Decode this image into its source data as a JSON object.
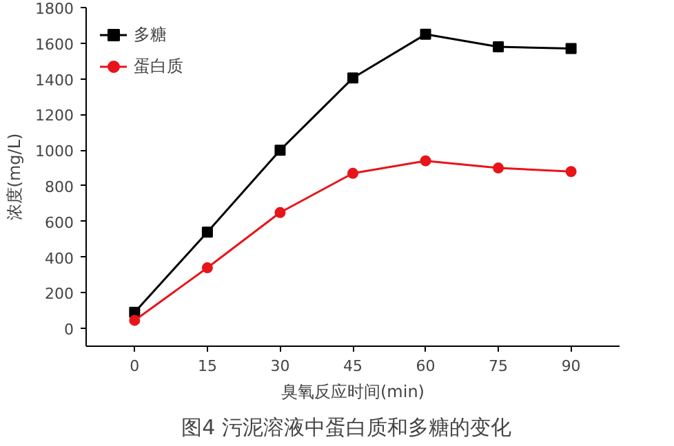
{
  "chart_data": {
    "type": "line",
    "title": "图4   污泥溶液中蛋白质和多糖的变化",
    "xlabel": "臭氧反应时间(min)",
    "ylabel": "浓度(mg/L)",
    "x": [
      0,
      15,
      30,
      45,
      60,
      75,
      90
    ],
    "series": [
      {
        "name": "多糖",
        "color": "#000000",
        "marker": "square",
        "values": [
          90,
          540,
          1000,
          1405,
          1650,
          1580,
          1570
        ]
      },
      {
        "name": "蛋白质",
        "color": "#e8141a",
        "marker": "circle",
        "values": [
          45,
          340,
          650,
          870,
          940,
          900,
          880
        ]
      }
    ],
    "xlim": [
      -10,
      100
    ],
    "xticks": [
      0,
      15,
      30,
      45,
      60,
      75,
      90
    ],
    "ylim": [
      -100,
      1800
    ],
    "yticks": [
      0,
      200,
      400,
      600,
      800,
      1000,
      1200,
      1400,
      1600,
      1800
    ],
    "legend": "top left",
    "grid": false,
    "line_style": "solid"
  }
}
